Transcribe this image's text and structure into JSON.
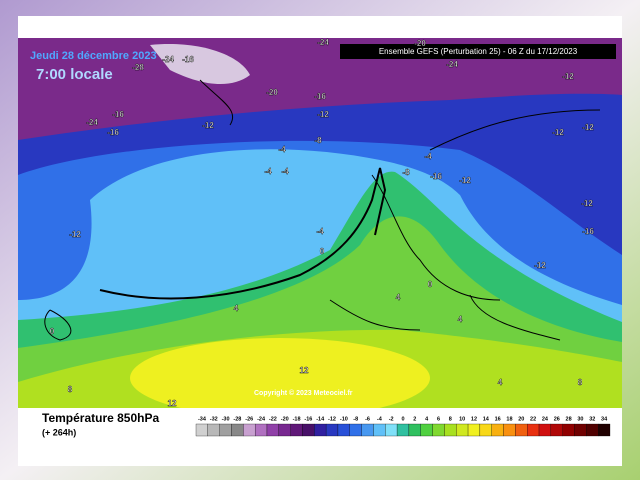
{
  "header": {
    "date": "Jeudi 28 décembre 2023",
    "time": "7:00 locale",
    "run": "Ensemble GEFS  (Perturbation 25)  -  06 Z du 17/12/2023"
  },
  "footer": {
    "title": "Température 850hPa",
    "lead": "(+ 264h)",
    "copyright": "Copyright © 2023 Meteociel.fr"
  },
  "scale": {
    "values": [
      -34,
      -32,
      -30,
      -28,
      -26,
      -24,
      -22,
      -20,
      -18,
      -16,
      -14,
      -12,
      -10,
      -8,
      -6,
      -4,
      -2,
      0,
      2,
      4,
      6,
      8,
      10,
      12,
      14,
      16,
      18,
      20,
      22,
      24,
      26,
      28,
      30,
      32,
      34
    ],
    "colors": [
      "#d0d0d0",
      "#b8b8b8",
      "#a0a0a0",
      "#888888",
      "#c8a0d0",
      "#b070c0",
      "#9040a8",
      "#782890",
      "#601878",
      "#481068",
      "#3020a0",
      "#2838c0",
      "#2850d8",
      "#3070e8",
      "#4898f0",
      "#60c0f8",
      "#80e0f8",
      "#30c0a0",
      "#30c060",
      "#50d040",
      "#80d830",
      "#a8e020",
      "#d0e820",
      "#f0f020",
      "#f8d818",
      "#f8b010",
      "#f89010",
      "#f06010",
      "#e83010",
      "#d01010",
      "#b00808",
      "#900000",
      "#700000",
      "#500000",
      "#200000"
    ]
  },
  "contour_labels": [
    -24,
    -20,
    -24,
    -16,
    -28,
    -24,
    -12,
    -20,
    -16,
    -16,
    -24,
    -16,
    -12,
    -12,
    -12,
    -12,
    -8,
    -4,
    -4,
    -4,
    -4,
    -8,
    -16,
    -12,
    -12,
    -4,
    -12,
    -16,
    -12,
    0,
    4,
    4,
    8,
    12,
    12,
    4,
    8,
    4,
    0,
    0
  ]
}
